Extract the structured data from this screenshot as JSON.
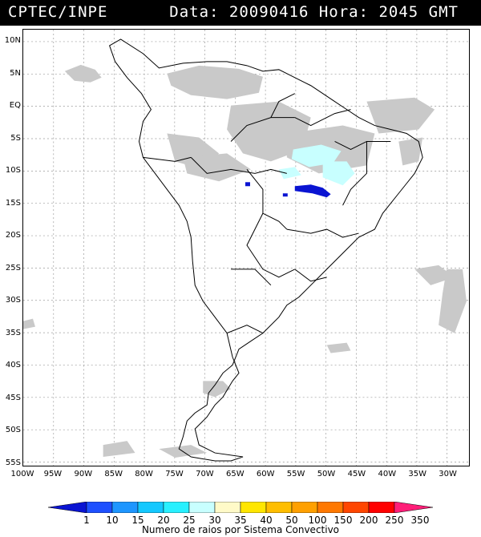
{
  "header": {
    "source": "CPTEC/INPE",
    "info": "Data: 20090416 Hora: 2045 GMT"
  },
  "axes": {
    "lat_labels": [
      "10N",
      "5N",
      "EQ",
      "5S",
      "10S",
      "15S",
      "20S",
      "25S",
      "30S",
      "35S",
      "40S",
      "45S",
      "50S",
      "55S"
    ],
    "lon_labels": [
      "100W",
      "95W",
      "90W",
      "85W",
      "80W",
      "75W",
      "70W",
      "65W",
      "60W",
      "55W",
      "50W",
      "45W",
      "40W",
      "35W",
      "30W"
    ]
  },
  "legend": {
    "values": [
      "1",
      "10",
      "15",
      "20",
      "25",
      "30",
      "35",
      "40",
      "50",
      "100",
      "150",
      "200",
      "250",
      "350"
    ],
    "colors": [
      "#0a14d2",
      "#1e50ff",
      "#1e96ff",
      "#14c8ff",
      "#28f0ff",
      "#c8ffff",
      "#fffac8",
      "#ffe600",
      "#ffbe00",
      "#ffa000",
      "#ff7800",
      "#ff4600",
      "#ff0000",
      "#ff1e78"
    ],
    "title": "Numero de raios por Sistema Convectivo"
  }
}
